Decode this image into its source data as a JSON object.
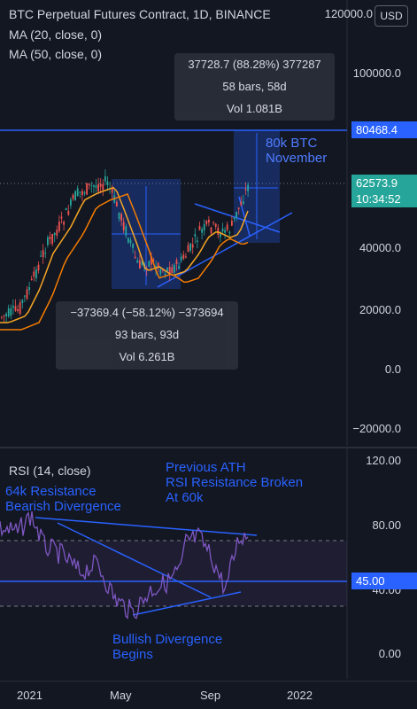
{
  "header": {
    "title": "BTC Perpetual Futures Contract, 1D, BINANCE",
    "ma20": "MA (20, close, 0)",
    "ma50": "MA (50, close, 0)",
    "currency_button": "USD"
  },
  "price_axis": {
    "labels": [
      "120000.0",
      "100000.0",
      "80000.0",
      "40000.0",
      "20000.0",
      "0.0",
      "−20000.0"
    ],
    "target_tag": "80468.4",
    "last_price_tag": "62573.9",
    "countdown_tag": "10:34:52"
  },
  "rsi_axis": {
    "labels": [
      "120.00",
      "80.00",
      "40.00",
      "0.00"
    ],
    "level_tag": "45.00"
  },
  "time_axis": {
    "labels": [
      "2021",
      "May",
      "Sep",
      "2022"
    ]
  },
  "measure_up": {
    "line1": "37728.7 (88.28%) 377287",
    "line2": "58 bars, 58d",
    "line3": "Vol 1.081B"
  },
  "measure_down": {
    "line1": "−37369.4 (−58.12%) −373694",
    "line2": "93 bars, 93d",
    "line3": "Vol 6.261B"
  },
  "annotations": {
    "target": [
      "80k BTC",
      "November"
    ],
    "rsi_title": "RSI (14, close)",
    "resistance": [
      "64k Resistance",
      "Bearish Divergence"
    ],
    "ath": [
      "Previous ATH",
      "RSI Resistance Broken",
      "At 60k"
    ],
    "bullish": [
      "Bullish Divergence",
      "Begins"
    ]
  },
  "colors": {
    "background": "#131722",
    "up_candle": "#26a69a",
    "down_candle": "#ef5350",
    "ma20": "#f6a623",
    "ma50": "#f57c00",
    "drawing": "#2962ff",
    "rsi_line": "#7e57c2"
  }
}
